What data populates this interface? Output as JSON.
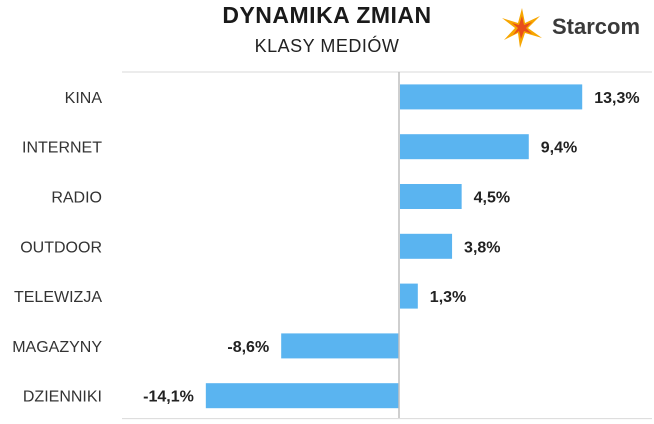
{
  "header": {
    "title": "DYNAMIKA ZMIAN",
    "subtitle": "KLASY MEDIÓW"
  },
  "logo": {
    "text": "Starcom",
    "colors": [
      "#f7a600",
      "#e84e1b"
    ]
  },
  "colors": {
    "bar": "#5ab4f0",
    "axis": "#bfbfbf",
    "grid": "#d9d9d9"
  },
  "chart_data": {
    "type": "bar",
    "orientation": "horizontal",
    "categories": [
      "KINA",
      "INTERNET",
      "RADIO",
      "OUTDOOR",
      "TELEWIZJA",
      "MAGAZYNY",
      "DZIENNIKI"
    ],
    "values": [
      13.3,
      9.4,
      4.5,
      3.8,
      1.3,
      -8.6,
      -14.1
    ],
    "value_labels": [
      "13,3%",
      "9,4%",
      "4,5%",
      "3,8%",
      "1,3%",
      "-8,6%",
      "-14,1%"
    ],
    "title": "DYNAMIKA ZMIAN",
    "subtitle": "KLASY MEDIÓW",
    "xlim": [
      -20,
      20
    ],
    "grid": false,
    "legend": "none"
  }
}
